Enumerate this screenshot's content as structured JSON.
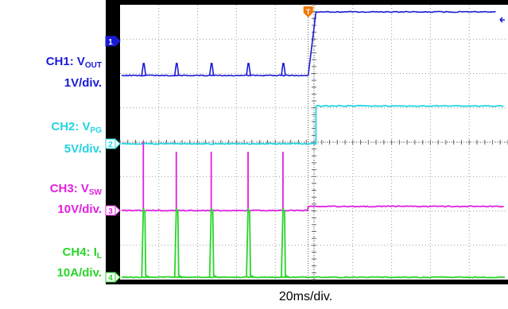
{
  "chart_data": {
    "type": "line",
    "x_scale_label": "20ms/div.",
    "trigger_marker": "T",
    "time_axis": {
      "unit": "div",
      "range": [
        0,
        10
      ],
      "trigger_at": 4.85
    },
    "grid": true,
    "channels": [
      {
        "id": "1",
        "label_main": "CH1: V",
        "label_sub": "OUT",
        "scale": "1V/div.",
        "color": "#1a1ad6",
        "marker_div": 1.0,
        "levels_div": {
          "before": 0.0,
          "after": 1.85
        },
        "spikes_at_div": [
          0.6,
          1.45,
          2.35,
          3.3,
          4.2
        ],
        "spike_height_div": 0.35,
        "rise_div": [
          4.85,
          5.05
        ]
      },
      {
        "id": "2",
        "label_main": "CH2: V",
        "label_sub": "PG",
        "scale": "5V/div.",
        "color": "#22d4e0",
        "marker_div": 0.0,
        "levels_div": {
          "before": 0.0,
          "after": 1.1
        },
        "step_at_div": 5.05
      },
      {
        "id": "3",
        "label_main": "CH3: V",
        "label_sub": "SW",
        "scale": "10V/div.",
        "color": "#e020e0",
        "marker_div": 0.0,
        "levels_div": {
          "before": 0.0,
          "after": 0.12
        },
        "spikes_at_div": [
          0.6,
          1.45,
          2.35,
          3.3,
          4.2
        ],
        "spike_height_div": 1.9
      },
      {
        "id": "4",
        "label_main": "CH4: I",
        "label_sub": "L",
        "scale": "10A/div.",
        "color": "#2ad42a",
        "marker_div": 0.0,
        "levels_div": {
          "before": 0.0,
          "after": 0.0
        },
        "pulses_at_div": [
          0.6,
          1.45,
          2.35,
          3.3,
          4.2
        ],
        "pulse_height_div": 2.0
      }
    ]
  },
  "colors": {
    "grid_bg": "#000000",
    "screen_bg": "#ffffff",
    "trigger": "#f07800",
    "ref_arrow": "#1a1ad6"
  }
}
